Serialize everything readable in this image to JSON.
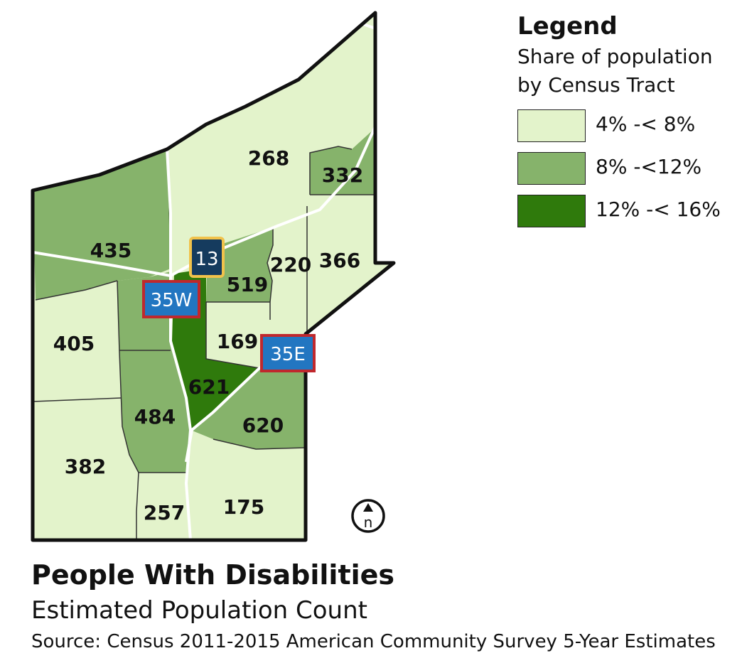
{
  "colors": {
    "low": "#e3f3cb",
    "mid": "#86b36b",
    "high": "#2f7a0c",
    "outline": "#111111",
    "road": "#ffffff"
  },
  "legend": {
    "title": "Legend",
    "subtitle_line1": "Share of population",
    "subtitle_line2": "by Census Tract",
    "items": [
      {
        "label": "4% -< 8%",
        "color": "#e3f3cb"
      },
      {
        "label": "8% -<12%",
        "color": "#86b36b"
      },
      {
        "label": "12% -< 16%",
        "color": "#2f7a0c"
      }
    ]
  },
  "tracts": [
    {
      "count": "268",
      "class": "low"
    },
    {
      "count": "332",
      "class": "mid"
    },
    {
      "count": "435",
      "class": "mid"
    },
    {
      "count": "519",
      "class": "mid"
    },
    {
      "count": "220",
      "class": "low"
    },
    {
      "count": "366",
      "class": "low"
    },
    {
      "count": "405",
      "class": "low"
    },
    {
      "count": "169",
      "class": "low"
    },
    {
      "count": "621",
      "class": "high"
    },
    {
      "count": "484",
      "class": "mid"
    },
    {
      "count": "620",
      "class": "mid"
    },
    {
      "count": "382",
      "class": "low"
    },
    {
      "count": "257",
      "class": "low"
    },
    {
      "count": "175",
      "class": "low"
    }
  ],
  "highways": [
    {
      "label": "13",
      "style": "state"
    },
    {
      "label": "35W",
      "style": "interstate"
    },
    {
      "label": "35E",
      "style": "interstate"
    }
  ],
  "north_arrow": "n",
  "title": "People With Disabilities",
  "subtitle": "Estimated Population Count",
  "source": "Source: Census 2011-2015 American Community Survey 5-Year Estimates"
}
